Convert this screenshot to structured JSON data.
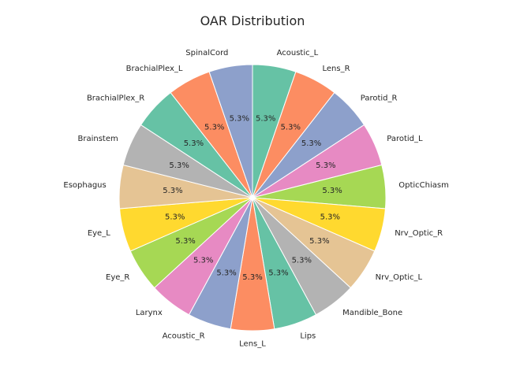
{
  "chart_data": {
    "type": "pie",
    "title": "OAR Distribution",
    "start_angle_deg": 90,
    "direction": "clockwise",
    "slices": [
      {
        "label": "Acoustic_L",
        "value": 1,
        "pct_label": "5.3%",
        "color": "#66c2a5"
      },
      {
        "label": "Lens_R",
        "value": 1,
        "pct_label": "5.3%",
        "color": "#fc8d62"
      },
      {
        "label": "Parotid_R",
        "value": 1,
        "pct_label": "5.3%",
        "color": "#8da0cb"
      },
      {
        "label": "Parotid_L",
        "value": 1,
        "pct_label": "5.3%",
        "color": "#e78ac3"
      },
      {
        "label": "OpticChiasm",
        "value": 1,
        "pct_label": "5.3%",
        "color": "#a6d854"
      },
      {
        "label": "Nrv_Optic_R",
        "value": 1,
        "pct_label": "5.3%",
        "color": "#ffd92f"
      },
      {
        "label": "Nrv_Optic_L",
        "value": 1,
        "pct_label": "5.3%",
        "color": "#e5c494"
      },
      {
        "label": "Mandible_Bone",
        "value": 1,
        "pct_label": "5.3%",
        "color": "#b3b3b3"
      },
      {
        "label": "Lips",
        "value": 1,
        "pct_label": "5.3%",
        "color": "#66c2a5"
      },
      {
        "label": "Lens_L",
        "value": 1,
        "pct_label": "5.3%",
        "color": "#fc8d62"
      },
      {
        "label": "Acoustic_R",
        "value": 1,
        "pct_label": "5.3%",
        "color": "#8da0cb"
      },
      {
        "label": "Larynx",
        "value": 1,
        "pct_label": "5.3%",
        "color": "#e78ac3"
      },
      {
        "label": "Eye_R",
        "value": 1,
        "pct_label": "5.3%",
        "color": "#a6d854"
      },
      {
        "label": "Eye_L",
        "value": 1,
        "pct_label": "5.3%",
        "color": "#ffd92f"
      },
      {
        "label": "Esophagus",
        "value": 1,
        "pct_label": "5.3%",
        "color": "#e5c494"
      },
      {
        "label": "Brainstem",
        "value": 1,
        "pct_label": "5.3%",
        "color": "#b3b3b3"
      },
      {
        "label": "BrachialPlex_R",
        "value": 1,
        "pct_label": "5.3%",
        "color": "#66c2a5"
      },
      {
        "label": "BrachialPlex_L",
        "value": 1,
        "pct_label": "5.3%",
        "color": "#fc8d62"
      },
      {
        "label": "SpinalCord",
        "value": 1,
        "pct_label": "5.3%",
        "color": "#8da0cb"
      }
    ]
  }
}
